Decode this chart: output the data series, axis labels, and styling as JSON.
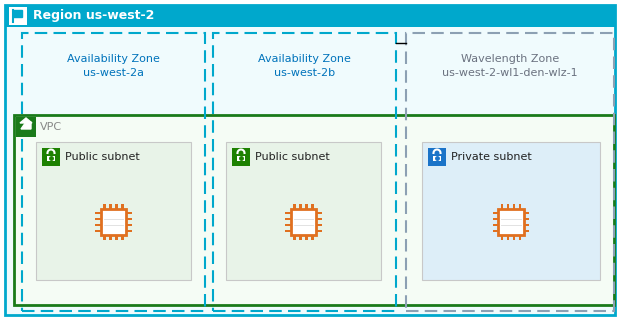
{
  "fig_width": 6.21,
  "fig_height": 3.21,
  "bg_color": "#ffffff",
  "region_label": "Region us-west-2",
  "region_border_color": "#00a8cc",
  "region_header_bg": "#00a8cc",
  "vpc_label": "VPC",
  "vpc_border_color": "#1a7a1a",
  "az1_label": "Availability Zone\nus-west-2a",
  "az2_label": "Availability Zone\nus-west-2b",
  "wz_label": "Wavelength Zone\nus-west-2-wl1-den-wlz-1",
  "az_border_color": "#00a8cc",
  "wz_border_color": "#8ca0b3",
  "subnet1_label": "Public subnet",
  "subnet2_label": "Public subnet",
  "subnet3_label": "Private subnet",
  "public_subnet_bg": "#e8f3e8",
  "private_subnet_bg": "#ddeef8",
  "public_subnet_icon_color": "#1d8102",
  "private_subnet_icon_color": "#1a73c8",
  "chip_color": "#e07020",
  "label_color_az": "#0073bb",
  "label_color_wz": "#6b7280"
}
